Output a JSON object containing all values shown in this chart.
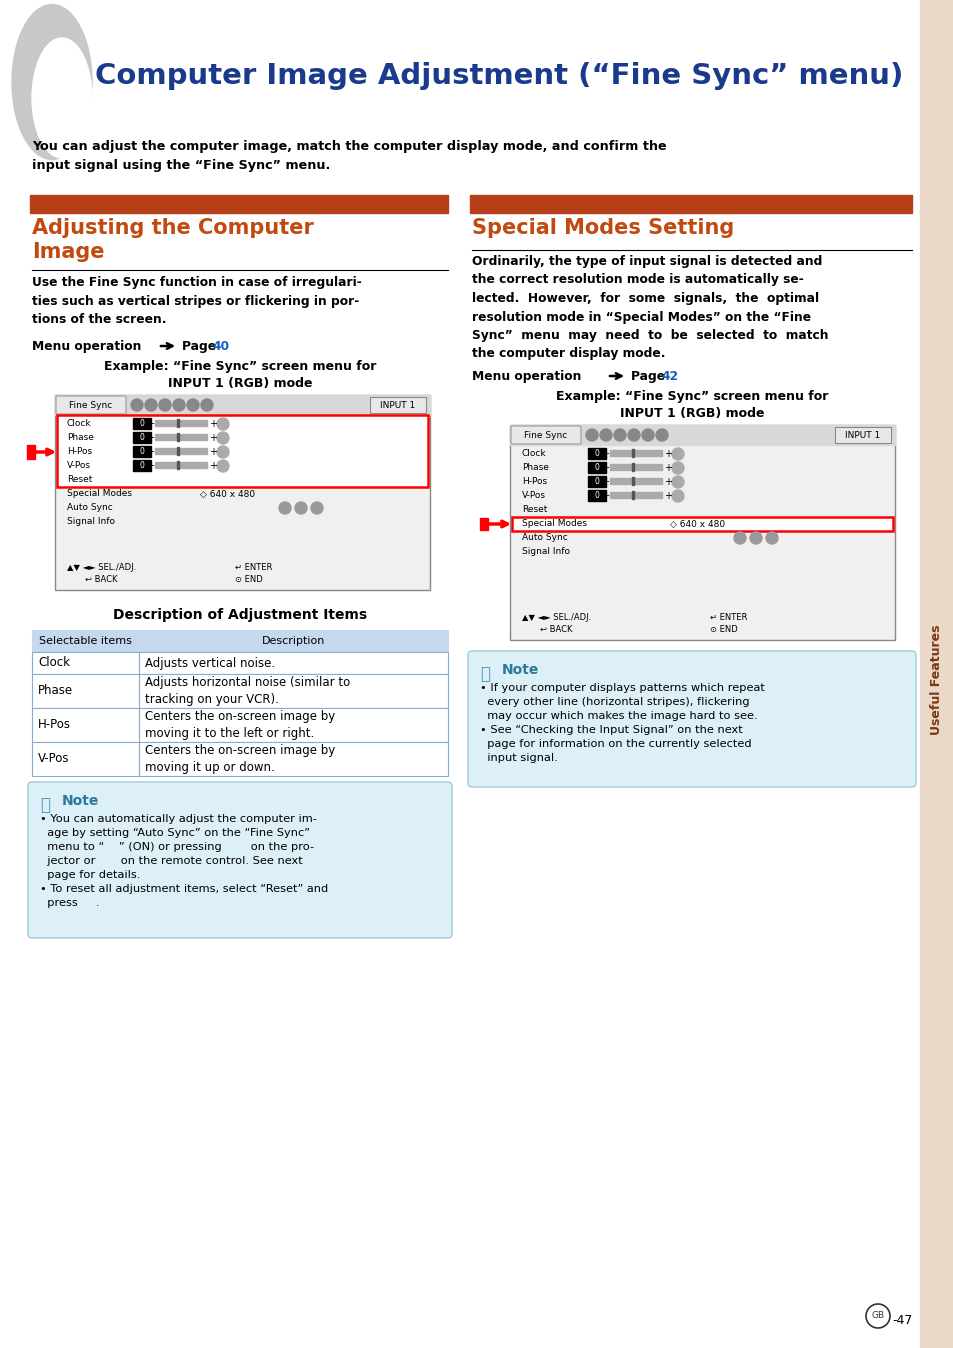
{
  "page_title": "Computer Image Adjustment (“Fine Sync” menu)",
  "page_bg": "#ffffff",
  "title_color": "#1a3a8c",
  "header_bar_color": "#b5401a",
  "section1_title": "Adjusting the Computer\nImage",
  "section1_title_color": "#c04a10",
  "section2_title": "Special Modes Setting",
  "section2_title_color": "#c04a10",
  "intro_text": "You can adjust the computer image, match the computer display mode, and confirm the\ninput signal using the “Fine Sync” menu.",
  "section1_body": "Use the Fine Sync function in case of irregulari-\nties such as vertical stripes or flickering in por-\ntions of the screen.",
  "section2_body": "Ordinarily, the type of input signal is detected and\nthe correct resolution mode is automatically se-\nlected.  However,  for  some  signals,  the  optimal\nresolution mode in “Special Modes” on the “Fine\nSync”  menu  may  need  to  be  selected  to  match\nthe computer display mode.",
  "menu_page40": "40",
  "menu_page42": "42",
  "example1_title": "Example: “Fine Sync” screen menu for\nINPUT 1 (RGB) mode",
  "example2_title": "Example: “Fine Sync” screen menu for\nINPUT 1 (RGB) mode",
  "desc_title": "Description of Adjustment Items",
  "table_header_bg": "#c5d8ee",
  "table_border": "#8aaccf",
  "table_cols": [
    "Selectable items",
    "Description"
  ],
  "table_rows": [
    [
      "Clock",
      "Adjusts vertical noise."
    ],
    [
      "Phase",
      "Adjusts horizontal noise (similar to\ntracking on your VCR)."
    ],
    [
      "H-Pos",
      "Centers the on-screen image by\nmoving it to the left or right."
    ],
    [
      "V-Pos",
      "Centers the on-screen image by\nmoving it up or down."
    ]
  ],
  "note_bg": "#ddf0f8",
  "note_border": "#a0cce0",
  "note1_lines": "• You can automatically adjust the computer im-\n  age by setting “Auto Sync” on the “Fine Sync”\n  menu to “    ” (ON) or pressing        on the pro-\n  jector or       on the remote control. See next\n  page for details.\n• To reset all adjustment items, select “Reset” and\n  press     .",
  "note2_lines": "• If your computer displays patterns which repeat\n  every other line (horizontal stripes), flickering\n  may occur which makes the image hard to see.\n• See “Checking the Input Signal” on the next\n  page for information on the currently selected\n  input signal.",
  "right_sidebar_color": "#ead8c8",
  "sidebar_text": "Useful Features",
  "page_num": "-47",
  "link_color": "#1a5fbf",
  "body_text_color": "#000000"
}
